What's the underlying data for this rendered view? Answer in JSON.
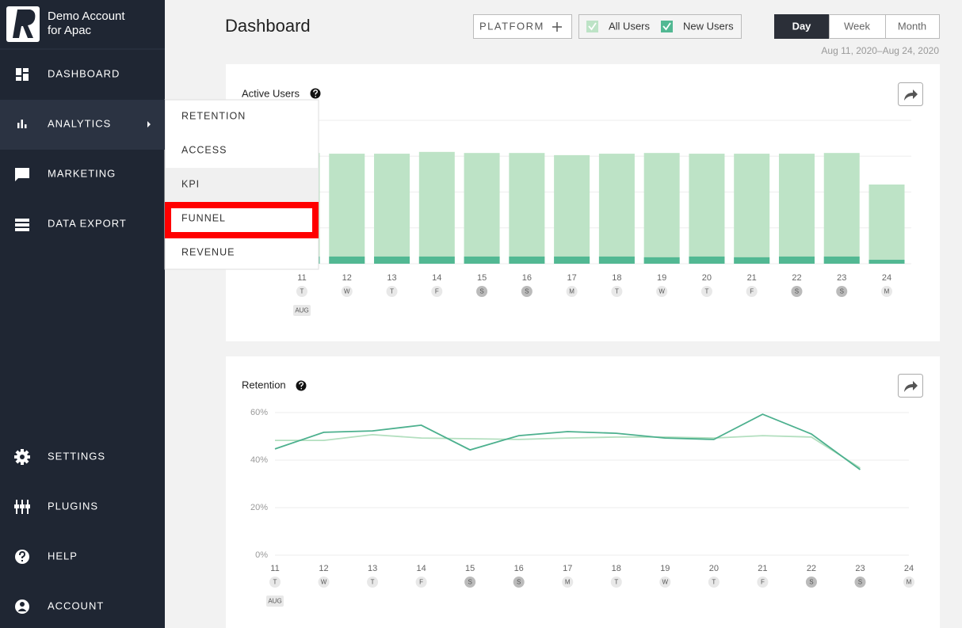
{
  "sidebar": {
    "account_name": [
      "Demo Account",
      "for Apac"
    ],
    "items": [
      "DASHBOARD",
      "ANALYTICS",
      "MARKETING",
      "DATA EXPORT"
    ],
    "active": 1,
    "bottom_items": [
      "SETTINGS",
      "PLUGINS",
      "HELP",
      "ACCOUNT"
    ]
  },
  "submenu": {
    "items": [
      "RETENTION",
      "ACCESS",
      "KPI",
      "FUNNEL",
      "REVENUE"
    ],
    "hovered": 2,
    "highlighted": 3
  },
  "header": {
    "title": "Dashboard",
    "platform": "PLATFORM",
    "filters": [
      "All Users",
      "New Users"
    ],
    "ranges": [
      "Day",
      "Week",
      "Month"
    ],
    "active_range": 0,
    "date_range": "Aug 11, 2020–Aug 24, 2020"
  },
  "chart_data": [
    {
      "type": "bar",
      "title": "Active Users",
      "categories": [
        "11",
        "12",
        "13",
        "14",
        "15",
        "16",
        "17",
        "18",
        "19",
        "20",
        "21",
        "22",
        "23",
        "24"
      ],
      "weekdays": [
        "T",
        "W",
        "T",
        "F",
        "S",
        "S",
        "M",
        "T",
        "W",
        "T",
        "F",
        "S",
        "S",
        "M"
      ],
      "weekend": [
        false,
        false,
        false,
        false,
        true,
        true,
        false,
        false,
        false,
        false,
        false,
        true,
        true,
        false
      ],
      "month": "AUG",
      "series": [
        {
          "name": "All Users",
          "color": "#bde3c6",
          "values": [
            3.09,
            3.07,
            3.07,
            3.12,
            3.09,
            3.09,
            3.03,
            3.07,
            3.09,
            3.07,
            3.07,
            3.07,
            3.09,
            2.21
          ]
        },
        {
          "name": "New Users",
          "color": "#52b893",
          "values": [
            0.2,
            0.2,
            0.2,
            0.2,
            0.2,
            0.2,
            0.2,
            0.2,
            0.18,
            0.2,
            0.18,
            0.2,
            0.2,
            0.11
          ]
        }
      ],
      "ylim": [
        0,
        4
      ],
      "yticks": [
        0,
        1,
        2,
        3,
        4
      ],
      "grid": true,
      "tick_labels": false
    },
    {
      "type": "line",
      "title": "Retention",
      "categories": [
        "11",
        "12",
        "13",
        "14",
        "15",
        "16",
        "17",
        "18",
        "19",
        "20",
        "21",
        "22",
        "23",
        "24"
      ],
      "weekdays": [
        "T",
        "W",
        "T",
        "F",
        "S",
        "S",
        "M",
        "T",
        "W",
        "T",
        "F",
        "S",
        "S",
        "M"
      ],
      "weekend": [
        false,
        false,
        false,
        false,
        true,
        true,
        false,
        false,
        false,
        false,
        false,
        true,
        true,
        false
      ],
      "month": "AUG",
      "series": [
        {
          "name": "All Users",
          "color": "#b3dfbf",
          "values": [
            48.3,
            48.3,
            50.7,
            49.3,
            49,
            48.7,
            49.3,
            49.7,
            49.7,
            49.3,
            50.3,
            49.7,
            36.7,
            null
          ]
        },
        {
          "name": "New Users",
          "color": "#4cb08e",
          "values": [
            44.7,
            51.7,
            52.3,
            54.7,
            44.3,
            50.3,
            52,
            51.3,
            49.3,
            48.7,
            59.3,
            51,
            36,
            null
          ]
        }
      ],
      "ylim": [
        0,
        60
      ],
      "yticks": [
        {
          "value": 0,
          "label": "0%"
        },
        {
          "value": 20,
          "label": "20%"
        },
        {
          "value": 40,
          "label": "40%"
        },
        {
          "value": 60,
          "label": "60%"
        }
      ],
      "grid": true,
      "tick_labels": true
    }
  ]
}
